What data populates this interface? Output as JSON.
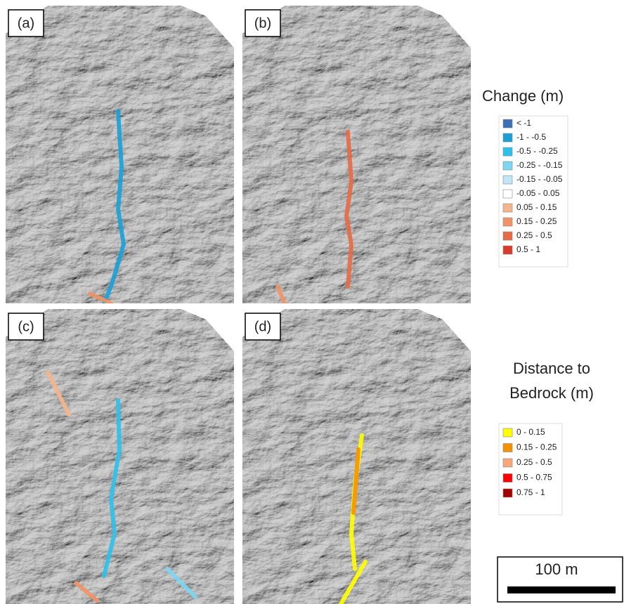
{
  "panels": [
    {
      "label": "(a)"
    },
    {
      "label": "(b)"
    },
    {
      "label": "(c)"
    },
    {
      "label": "(d)"
    }
  ],
  "change_legend": {
    "title": "Change (m)",
    "items": [
      {
        "label": "< -1",
        "color": "#3d6fb5"
      },
      {
        "label": "-1 - -0.5",
        "color": "#1aa0d8"
      },
      {
        "label": "-0.5 - -0.25",
        "color": "#2ec0ea"
      },
      {
        "label": "-0.25 - -0.15",
        "color": "#7dd6f2"
      },
      {
        "label": "-0.15 - -0.05",
        "color": "#bfe6f5"
      },
      {
        "label": "-0.05 - 0.05",
        "color": "#ffffff"
      },
      {
        "label": "0.05 - 0.15",
        "color": "#f5b58a"
      },
      {
        "label": "0.15 - 0.25",
        "color": "#ef9468"
      },
      {
        "label": "0.25 - 0.5",
        "color": "#e66a45"
      },
      {
        "label": "0.5 - 1",
        "color": "#d93a2b"
      }
    ]
  },
  "bedrock_legend": {
    "title_lines": [
      "Distance to",
      "Bedrock (m)"
    ],
    "items": [
      {
        "label": "0 - 0.15",
        "color": "#ffff00"
      },
      {
        "label": "0.15 - 0.25",
        "color": "#f39200"
      },
      {
        "label": "0.25 - 0.5",
        "color": "#f7a57a"
      },
      {
        "label": "0.5 - 0.75",
        "color": "#ff0000"
      },
      {
        "label": "0.75 - 1",
        "color": "#a50000"
      }
    ]
  },
  "scale_bar": {
    "label": "100 m"
  }
}
